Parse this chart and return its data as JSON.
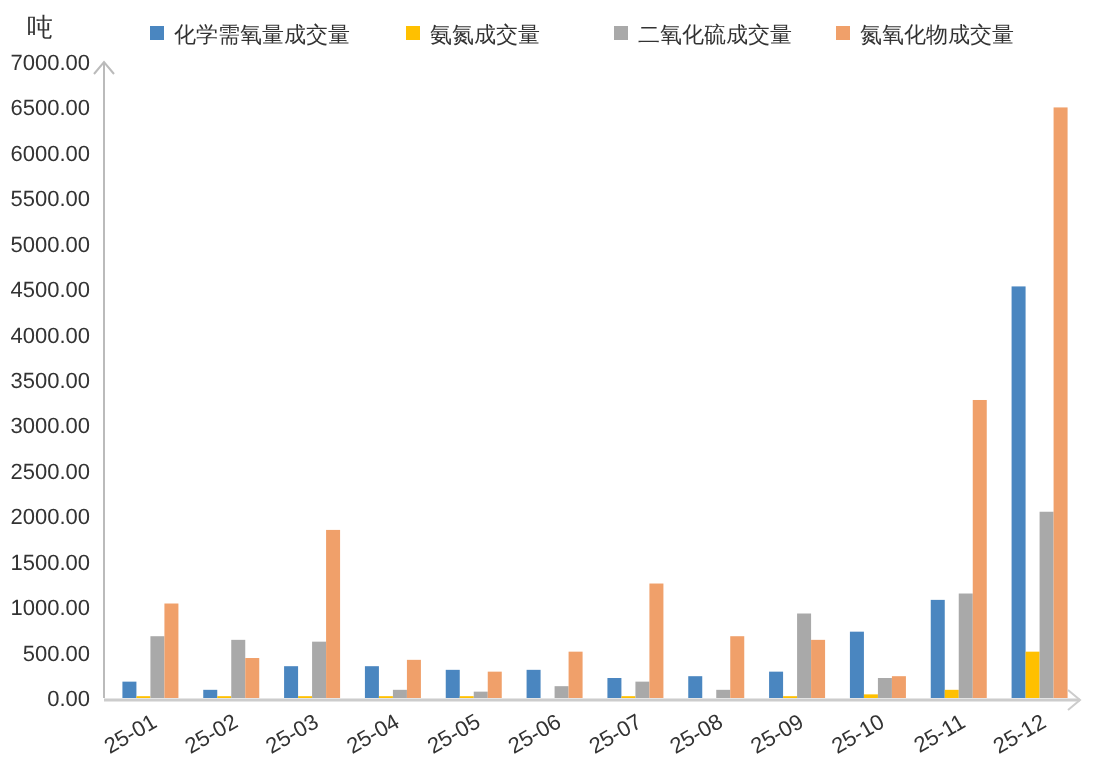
{
  "chart_data": {
    "type": "bar",
    "ylabel": "吨",
    "categories": [
      "25-01",
      "25-02",
      "25-03",
      "25-04",
      "25-05",
      "25-06",
      "25-07",
      "25-08",
      "25-09",
      "25-10",
      "25-11",
      "25-12"
    ],
    "series": [
      {
        "name": "化学需氧量成交量",
        "color": "#4a86c0",
        "values": [
          180,
          90,
          350,
          350,
          310,
          310,
          220,
          240,
          290,
          730,
          1080,
          4530
        ]
      },
      {
        "name": "氨氮成交量",
        "color": "#ffc000",
        "values": [
          20,
          20,
          20,
          20,
          20,
          0,
          20,
          0,
          20,
          40,
          90,
          510
        ]
      },
      {
        "name": "二氧化硫成交量",
        "color": "#a9a9a9",
        "values": [
          680,
          640,
          620,
          90,
          70,
          130,
          180,
          90,
          930,
          220,
          1150,
          2050
        ]
      },
      {
        "name": "氮氧化物成交量",
        "color": "#f0a06a",
        "values": [
          1040,
          440,
          1850,
          420,
          290,
          510,
          1260,
          680,
          640,
          240,
          3280,
          6500
        ]
      }
    ],
    "ylim": [
      0,
      7000
    ],
    "yticks": [
      {
        "value": 0,
        "label": "0.00"
      },
      {
        "value": 500,
        "label": "500.00"
      },
      {
        "value": 1000,
        "label": "1000.00"
      },
      {
        "value": 1500,
        "label": "1500.00"
      },
      {
        "value": 2000,
        "label": "2000.00"
      },
      {
        "value": 2500,
        "label": "2500.00"
      },
      {
        "value": 3000,
        "label": "3000.00"
      },
      {
        "value": 3500,
        "label": "3500.00"
      },
      {
        "value": 4000,
        "label": "4000.00"
      },
      {
        "value": 4500,
        "label": "4500.00"
      },
      {
        "value": 5000,
        "label": "5000.00"
      },
      {
        "value": 5500,
        "label": "5500.00"
      },
      {
        "value": 6000,
        "label": "6000.00"
      },
      {
        "value": 6500,
        "label": "6500.00"
      },
      {
        "value": 7000,
        "label": "7000.00"
      }
    ],
    "grid": false,
    "legend": "top"
  }
}
